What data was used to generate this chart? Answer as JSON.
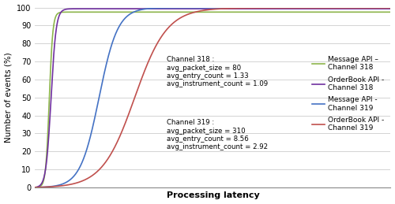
{
  "title": "",
  "xlabel": "Processing latency",
  "ylabel": "Number of events (%)",
  "ylim": [
    0,
    100
  ],
  "yticks": [
    0,
    10,
    20,
    30,
    40,
    50,
    60,
    70,
    80,
    90,
    100
  ],
  "background_color": "#ffffff",
  "curves": [
    {
      "name": "Message API –\nChannel 318",
      "color": "#8db54b",
      "k": 2.0,
      "x0": 0.04,
      "ymax": 97.5
    },
    {
      "name": "OrderBook API -\nChannel 318",
      "color": "#7030a0",
      "k": 1.4,
      "x0": 0.045,
      "ymax": 99.5
    },
    {
      "name": "Message API -\nChannel 319",
      "color": "#4472c4",
      "k": 0.38,
      "x0": 0.18,
      "ymax": 100.0
    },
    {
      "name": "OrderBook API -\nChannel 319",
      "color": "#c0504d",
      "k": 0.22,
      "x0": 0.28,
      "ymax": 100.0
    }
  ],
  "annotation_318": "Channel 318 :\navg_packet_size = 80\navg_entry_count = 1.33\navg_instrument_count = 1.09",
  "annotation_319": "Channel 319 :\navg_packet_size = 310\navg_entry_count = 8.56\navg_instrument_count = 2.92",
  "grid_color": "#cccccc",
  "xlim": [
    0,
    1
  ]
}
